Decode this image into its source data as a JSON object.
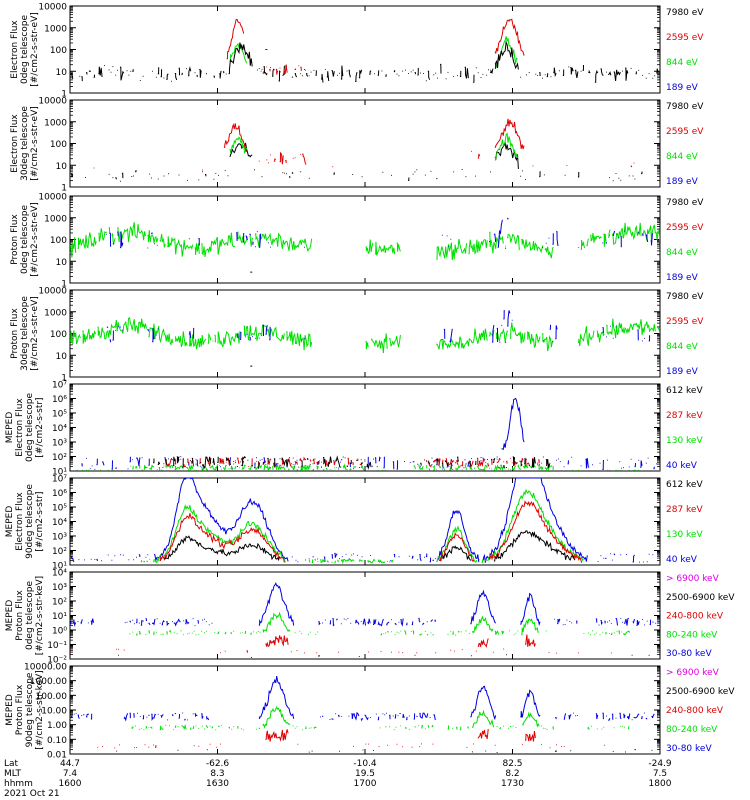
{
  "chart_data": {
    "type": "line",
    "title": "",
    "colors": {
      "black": "#000000",
      "red": "#e00000",
      "green": "#00e000",
      "blue": "#0000e0",
      "magenta": "#e000e0"
    },
    "x_axis": {
      "range": [
        0,
        1
      ],
      "rows": [
        {
          "label": "Lat",
          "ticks": [
            "44.7",
            "-62.6",
            "-10.4",
            "82.5",
            "-24.9"
          ]
        },
        {
          "label": "MLT",
          "ticks": [
            "7.4",
            "8.3",
            "19.5",
            "8.2",
            "7.5"
          ]
        },
        {
          "label": "hhmm",
          "ticks": [
            "1600",
            "1630",
            "1700",
            "1730",
            "1800"
          ]
        }
      ],
      "date": "2021 Oct 21"
    },
    "panels": [
      {
        "ylabel": [
          "Electron Flux",
          "0deg telescope",
          "[#/cm2-s-str-eV]"
        ],
        "yscale": "log",
        "ylim": [
          1,
          10000
        ],
        "ytick_labels": [
          "1",
          "10",
          "100",
          "1000",
          "10000"
        ],
        "legend": [
          {
            "text": "7980 eV",
            "color": "black"
          },
          {
            "text": "2595 eV",
            "color": "red"
          },
          {
            "text": "844 eV",
            "color": "green"
          },
          {
            "text": "189 eV",
            "color": "blue"
          }
        ]
      },
      {
        "ylabel": [
          "Electron Flux",
          "30deg telescope",
          "[#/cm2-s-str-eV]"
        ],
        "yscale": "log",
        "ylim": [
          1,
          10000
        ],
        "ytick_labels": [
          "1",
          "10",
          "100",
          "1000",
          "10000"
        ],
        "legend": [
          {
            "text": "7980 eV",
            "color": "black"
          },
          {
            "text": "2595 eV",
            "color": "red"
          },
          {
            "text": "844 eV",
            "color": "green"
          },
          {
            "text": "189 eV",
            "color": "blue"
          }
        ]
      },
      {
        "ylabel": [
          "Proton Flux",
          "0deg telescope",
          "[#/cm2-s-str-eV]"
        ],
        "yscale": "log",
        "ylim": [
          1,
          10000
        ],
        "ytick_labels": [
          "1",
          "10",
          "100",
          "1000",
          "10000"
        ],
        "legend": [
          {
            "text": "7980 eV",
            "color": "black"
          },
          {
            "text": "2595 eV",
            "color": "red"
          },
          {
            "text": "844 eV",
            "color": "green"
          },
          {
            "text": "189 eV",
            "color": "blue"
          }
        ]
      },
      {
        "ylabel": [
          "Proton Flux",
          "30deg telescope",
          "[#/cm2-s-str-eV]"
        ],
        "yscale": "log",
        "ylim": [
          1,
          10000
        ],
        "ytick_labels": [
          "1",
          "10",
          "100",
          "1000",
          "10000"
        ],
        "legend": [
          {
            "text": "7980 eV",
            "color": "black"
          },
          {
            "text": "2595 eV",
            "color": "red"
          },
          {
            "text": "844 eV",
            "color": "green"
          },
          {
            "text": "189 eV",
            "color": "blue"
          }
        ]
      },
      {
        "ylabel": [
          "MEPED",
          "Electron Flux",
          "0deg telescope",
          "[#/cm2-s-str]"
        ],
        "yscale": "log",
        "ylim": [
          10,
          10000000
        ],
        "ytick_labels": [
          "10¹",
          "10²",
          "10³",
          "10⁴",
          "10⁵",
          "10⁶",
          "10⁷"
        ],
        "legend": [
          {
            "text": "612 keV",
            "color": "black"
          },
          {
            "text": "287 keV",
            "color": "red"
          },
          {
            "text": "130 keV",
            "color": "green"
          },
          {
            "text": "40 keV",
            "color": "blue"
          }
        ]
      },
      {
        "ylabel": [
          "MEPED",
          "Electron Flux",
          "90deg telescope",
          "[#/cm2-s-str]"
        ],
        "yscale": "log",
        "ylim": [
          10,
          10000000
        ],
        "ytick_labels": [
          "10¹",
          "10²",
          "10³",
          "10⁴",
          "10⁵",
          "10⁶",
          "10⁷"
        ],
        "legend": [
          {
            "text": "612 keV",
            "color": "black"
          },
          {
            "text": "287 keV",
            "color": "red"
          },
          {
            "text": "130 keV",
            "color": "green"
          },
          {
            "text": "40 keV",
            "color": "blue"
          }
        ]
      },
      {
        "ylabel": [
          "MEPED",
          "Proton Flux",
          "0deg telescope",
          "[#/cm2-s-str-keV]"
        ],
        "yscale": "log",
        "ylim": [
          0.01,
          10000
        ],
        "ytick_labels": [
          "10⁻²",
          "10⁻¹",
          "10⁰",
          "10¹",
          "10²",
          "10³",
          "10⁴"
        ],
        "legend": [
          {
            "text": "> 6900 keV",
            "color": "magenta"
          },
          {
            "text": "2500-6900 keV",
            "color": "black"
          },
          {
            "text": "240-800 keV",
            "color": "red"
          },
          {
            "text": "80-240 keV",
            "color": "green"
          },
          {
            "text": "30-80 keV",
            "color": "blue"
          }
        ]
      },
      {
        "ylabel": [
          "MEPED",
          "Proton Flux",
          "90deg telescope",
          "[#/cm2-s-str-keV]"
        ],
        "yscale": "log",
        "ylim": [
          0.01,
          10000
        ],
        "ytick_labels": [
          "0.01",
          "0.10",
          "1.00",
          "10.00",
          "100.00",
          "1000.00",
          "10000.00"
        ],
        "legend": [
          {
            "text": "> 6900 keV",
            "color": "magenta"
          },
          {
            "text": "2500-6900 keV",
            "color": "black"
          },
          {
            "text": "240-800 keV",
            "color": "red"
          },
          {
            "text": "80-240 keV",
            "color": "green"
          },
          {
            "text": "30-80 keV",
            "color": "blue"
          }
        ]
      }
    ]
  }
}
